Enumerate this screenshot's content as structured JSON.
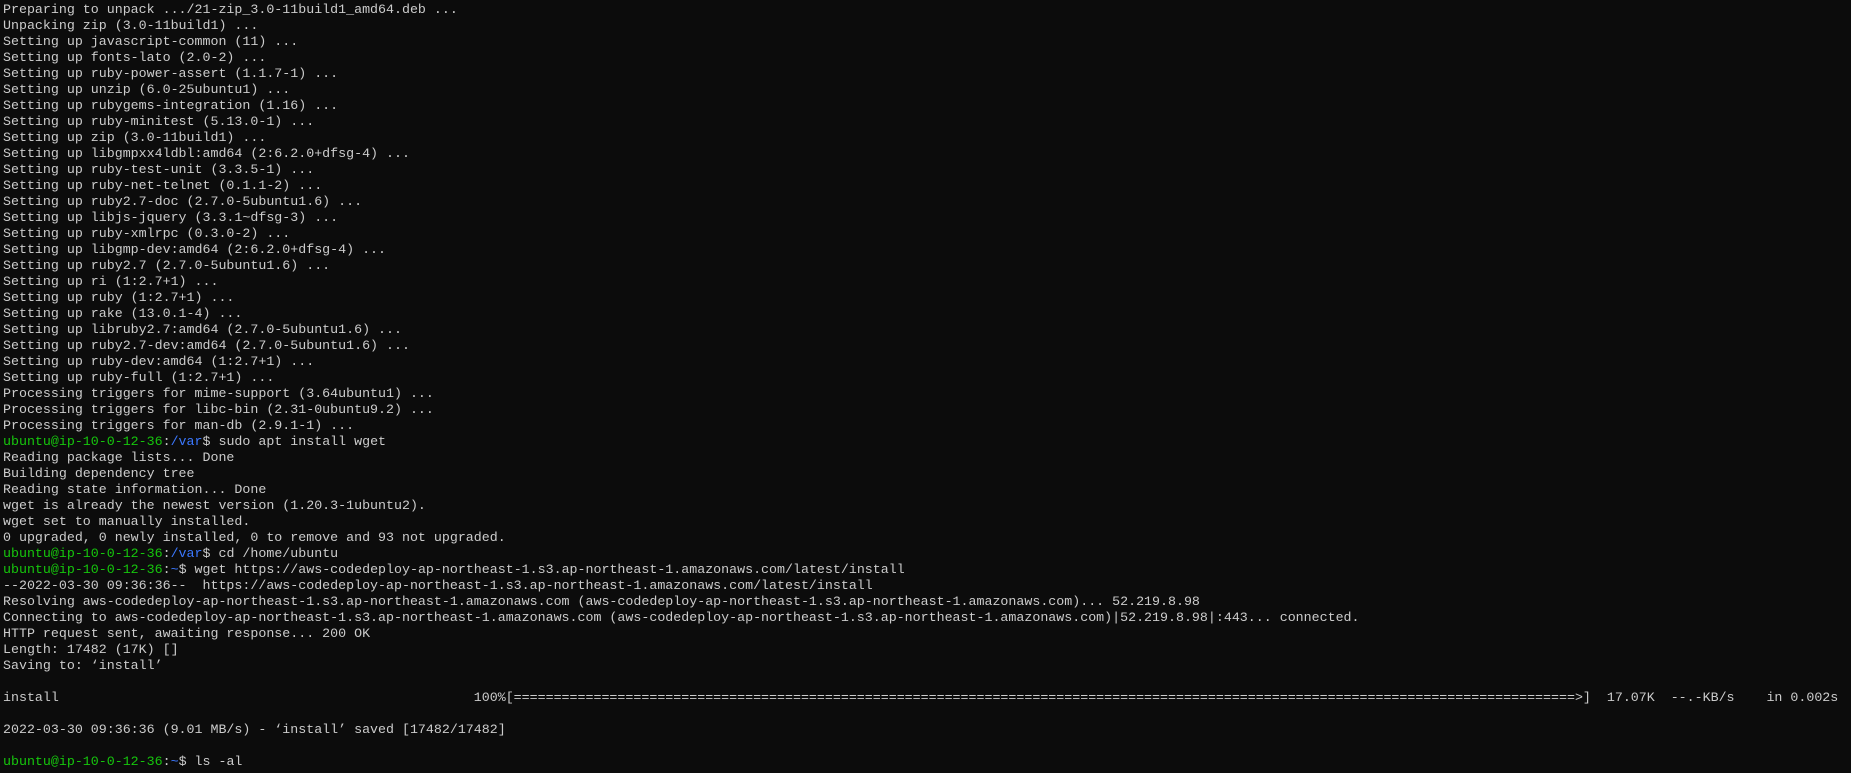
{
  "terminal": {
    "sections": [
      [
        "Preparing to unpack .../21-zip_3.0-11build1_amd64.deb ...",
        "Unpacking zip (3.0-11build1) ...",
        "Setting up javascript-common (11) ...",
        "Setting up fonts-lato (2.0-2) ...",
        "Setting up ruby-power-assert (1.1.7-1) ...",
        "Setting up unzip (6.0-25ubuntu1) ...",
        "Setting up rubygems-integration (1.16) ...",
        "Setting up ruby-minitest (5.13.0-1) ...",
        "Setting up zip (3.0-11build1) ...",
        "Setting up libgmpxx4ldbl:amd64 (2:6.2.0+dfsg-4) ...",
        "Setting up ruby-test-unit (3.3.5-1) ...",
        "Setting up ruby-net-telnet (0.1.1-2) ...",
        "Setting up ruby2.7-doc (2.7.0-5ubuntu1.6) ...",
        "Setting up libjs-jquery (3.3.1~dfsg-3) ...",
        "Setting up ruby-xmlrpc (0.3.0-2) ...",
        "Setting up libgmp-dev:amd64 (2:6.2.0+dfsg-4) ...",
        "Setting up ruby2.7 (2.7.0-5ubuntu1.6) ...",
        "Setting up ri (1:2.7+1) ...",
        "Setting up ruby (1:2.7+1) ...",
        "Setting up rake (13.0.1-4) ...",
        "Setting up libruby2.7:amd64 (2.7.0-5ubuntu1.6) ...",
        "Setting up ruby2.7-dev:amd64 (2.7.0-5ubuntu1.6) ...",
        "Setting up ruby-dev:amd64 (1:2.7+1) ...",
        "Setting up ruby-full (1:2.7+1) ...",
        "Processing triggers for mime-support (3.64ubuntu1) ...",
        "Processing triggers for libc-bin (2.31-0ubuntu9.2) ...",
        "Processing triggers for man-db (2.9.1-1) ...",
        {
          "user": "ubuntu@ip-10-0-12-36",
          "sep": ":",
          "path": "/var",
          "command": "$ sudo apt install wget"
        },
        "Reading package lists... Done",
        "Building dependency tree",
        "Reading state information... Done",
        "wget is already the newest version (1.20.3-1ubuntu2).",
        "wget set to manually installed.",
        "0 upgraded, 0 newly installed, 0 to remove and 93 not upgraded.",
        {
          "user": "ubuntu@ip-10-0-12-36",
          "sep": ":",
          "path": "/var",
          "command": "$ cd /home/ubuntu"
        },
        {
          "user": "ubuntu@ip-10-0-12-36",
          "sep": ":",
          "path": "~",
          "command": "$ wget https://aws-codedeploy-ap-northeast-1.s3.ap-northeast-1.amazonaws.com/latest/install"
        },
        "--2022-03-30 09:36:36--  https://aws-codedeploy-ap-northeast-1.s3.ap-northeast-1.amazonaws.com/latest/install",
        "Resolving aws-codedeploy-ap-northeast-1.s3.ap-northeast-1.amazonaws.com (aws-codedeploy-ap-northeast-1.s3.ap-northeast-1.amazonaws.com)... 52.219.8.98",
        "Connecting to aws-codedeploy-ap-northeast-1.s3.ap-northeast-1.amazonaws.com (aws-codedeploy-ap-northeast-1.s3.ap-northeast-1.amazonaws.com)|52.219.8.98|:443... connected.",
        "HTTP request sent, awaiting response... 200 OK",
        "Length: 17482 (17K) []",
        "Saving to: ‘install’"
      ],
      [
        "install                                                    100%[=====================================================================================================================================>]  17.07K  --.-KB/s    in 0.002s"
      ],
      [
        "2022-03-30 09:36:36 (9.01 MB/s) - ‘install’ saved [17482/17482]"
      ],
      [
        {
          "user": "ubuntu@ip-10-0-12-36",
          "sep": ":",
          "path": "~",
          "command": "$ ls -al"
        }
      ]
    ]
  }
}
